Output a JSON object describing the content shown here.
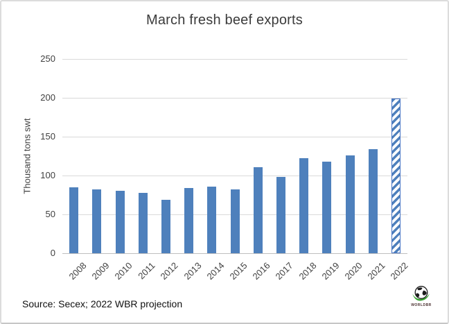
{
  "chart_data": {
    "type": "bar",
    "title": "March fresh beef exports",
    "xlabel": "",
    "ylabel": "Thousand tons swt",
    "categories": [
      "2008",
      "2009",
      "2010",
      "2011",
      "2012",
      "2013",
      "2014",
      "2015",
      "2016",
      "2017",
      "2018",
      "2019",
      "2020",
      "2021",
      "2022"
    ],
    "values": [
      85,
      82,
      80,
      78,
      69,
      84,
      86,
      82,
      111,
      98,
      122,
      118,
      126,
      134,
      199
    ],
    "projection_year": "2022",
    "projection_style": "diagonal-hatch",
    "ylim": [
      0,
      250
    ],
    "yticks": [
      0,
      50,
      100,
      150,
      200,
      250
    ],
    "grid": true,
    "legend": "none"
  },
  "source": {
    "text": "Source: Secex; 2022 WBR projection"
  },
  "logo": {
    "text": "WORLDBR"
  },
  "colors": {
    "bar": "#4E80BC",
    "projection_border": "#4472C4",
    "gridline": "#D9D9D9",
    "axis_text": "#404040",
    "title_text": "#3B3B3B",
    "logo_swoosh": "#33A02C",
    "logo_globe": "#1B1B1B"
  }
}
